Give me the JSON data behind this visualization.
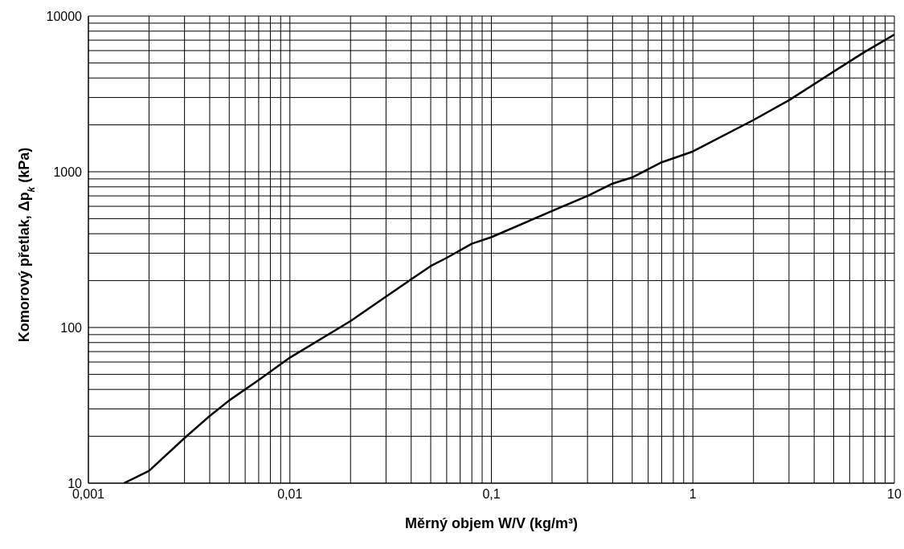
{
  "chart_data": {
    "type": "line",
    "xlabel": "Měrný objem W/V (kg/m³)",
    "ylabel": "Komorový přetlak, Δp$_{k}$ (kPa)",
    "log": "xy",
    "grid": true,
    "legend": false,
    "marker": "none",
    "line_style": "solid",
    "x": [
      0.0015,
      0.002,
      0.003,
      0.004,
      0.005,
      0.007,
      0.01,
      0.02,
      0.03,
      0.05,
      0.06,
      0.08,
      0.1,
      0.2,
      0.3,
      0.4,
      0.5,
      0.7,
      1,
      2,
      3,
      5,
      7,
      10
    ],
    "series": [
      {
        "color": "#000000",
        "values": [
          10,
          12,
          19.5,
          27,
          34,
          46,
          64,
          110,
          158,
          248,
          280,
          345,
          380,
          560,
          700,
          840,
          920,
          1150,
          1350,
          2150,
          2880,
          4400,
          5800,
          7600
        ]
      }
    ],
    "xlim": [
      0.001,
      10
    ],
    "ylim": [
      10,
      10000
    ],
    "xticks": [
      {
        "value": 0.001,
        "label": "0,001"
      },
      {
        "value": 0.002,
        "label": null
      },
      {
        "value": 0.003,
        "label": null
      },
      {
        "value": 0.004,
        "label": null
      },
      {
        "value": 0.005,
        "label": null
      },
      {
        "value": 0.006,
        "label": null
      },
      {
        "value": 0.007,
        "label": null
      },
      {
        "value": 0.008,
        "label": null
      },
      {
        "value": 0.009,
        "label": null
      },
      {
        "value": 0.01,
        "label": "0,01"
      },
      {
        "value": 0.02,
        "label": null
      },
      {
        "value": 0.03,
        "label": null
      },
      {
        "value": 0.04,
        "label": null
      },
      {
        "value": 0.05,
        "label": null
      },
      {
        "value": 0.06,
        "label": null
      },
      {
        "value": 0.07,
        "label": null
      },
      {
        "value": 0.08,
        "label": null
      },
      {
        "value": 0.09,
        "label": null
      },
      {
        "value": 0.1,
        "label": "0,1"
      },
      {
        "value": 0.2,
        "label": null
      },
      {
        "value": 0.3,
        "label": null
      },
      {
        "value": 0.4,
        "label": null
      },
      {
        "value": 0.5,
        "label": null
      },
      {
        "value": 0.6,
        "label": null
      },
      {
        "value": 0.7,
        "label": null
      },
      {
        "value": 0.8,
        "label": null
      },
      {
        "value": 0.9,
        "label": null
      },
      1,
      {
        "value": 2,
        "label": null
      },
      {
        "value": 3,
        "label": null
      },
      {
        "value": 4,
        "label": null
      },
      {
        "value": 5,
        "label": null
      },
      {
        "value": 6,
        "label": null
      },
      {
        "value": 7,
        "label": null
      },
      {
        "value": 8,
        "label": null
      },
      {
        "value": 9,
        "label": null
      },
      10
    ],
    "yticks": [
      10,
      {
        "value": 20,
        "label": null
      },
      {
        "value": 30,
        "label": null
      },
      {
        "value": 40,
        "label": null
      },
      {
        "value": 50,
        "label": null
      },
      {
        "value": 60,
        "label": null
      },
      {
        "value": 70,
        "label": null
      },
      {
        "value": 80,
        "label": null
      },
      {
        "value": 90,
        "label": null
      },
      100,
      {
        "value": 200,
        "label": null
      },
      {
        "value": 300,
        "label": null
      },
      {
        "value": 400,
        "label": null
      },
      {
        "value": 500,
        "label": null
      },
      {
        "value": 600,
        "label": null
      },
      {
        "value": 700,
        "label": null
      },
      {
        "value": 800,
        "label": null
      },
      {
        "value": 900,
        "label": null
      },
      1000,
      {
        "value": 2000,
        "label": null
      },
      {
        "value": 3000,
        "label": null
      },
      {
        "value": 4000,
        "label": null
      },
      {
        "value": 5000,
        "label": null
      },
      {
        "value": 6000,
        "label": null
      },
      {
        "value": 7000,
        "label": null
      },
      {
        "value": 8000,
        "label": null
      },
      {
        "value": 9000,
        "label": null
      },
      10000
    ]
  }
}
